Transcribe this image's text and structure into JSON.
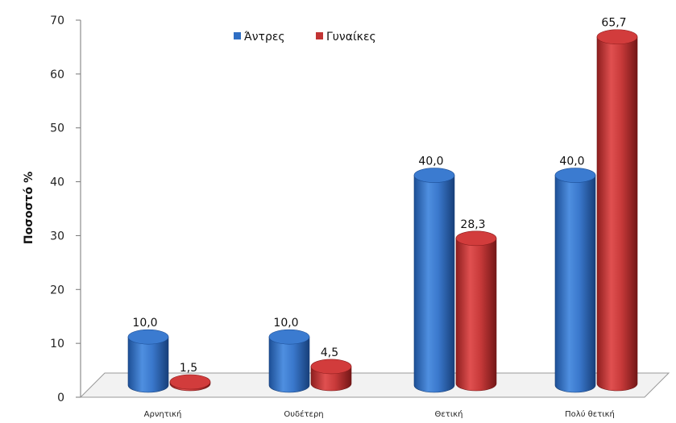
{
  "chart_data": {
    "type": "bar",
    "title": "",
    "xlabel": "",
    "ylabel": "Ποσοστό %",
    "ylim": [
      0,
      70
    ],
    "yticks": [
      0,
      10,
      20,
      30,
      40,
      50,
      60,
      70
    ],
    "categories": [
      "Αρνητική",
      "Ουδέτερη",
      "Θετική",
      "Πολύ θετική"
    ],
    "series": [
      {
        "name": "Άντρες",
        "values": [
          10.0,
          10.0,
          40.0,
          40.0
        ],
        "labels": [
          "10,0",
          "10,0",
          "40,0",
          "40,0"
        ],
        "color": "#2f6fc4"
      },
      {
        "name": "Γυναίκες",
        "values": [
          1.5,
          4.5,
          28.3,
          65.7
        ],
        "labels": [
          "1,5",
          "4,5",
          "28,3",
          "65,7"
        ],
        "color": "#c23434"
      }
    ],
    "legend_position": "top",
    "grid": false,
    "style": "3d-cylinder"
  }
}
